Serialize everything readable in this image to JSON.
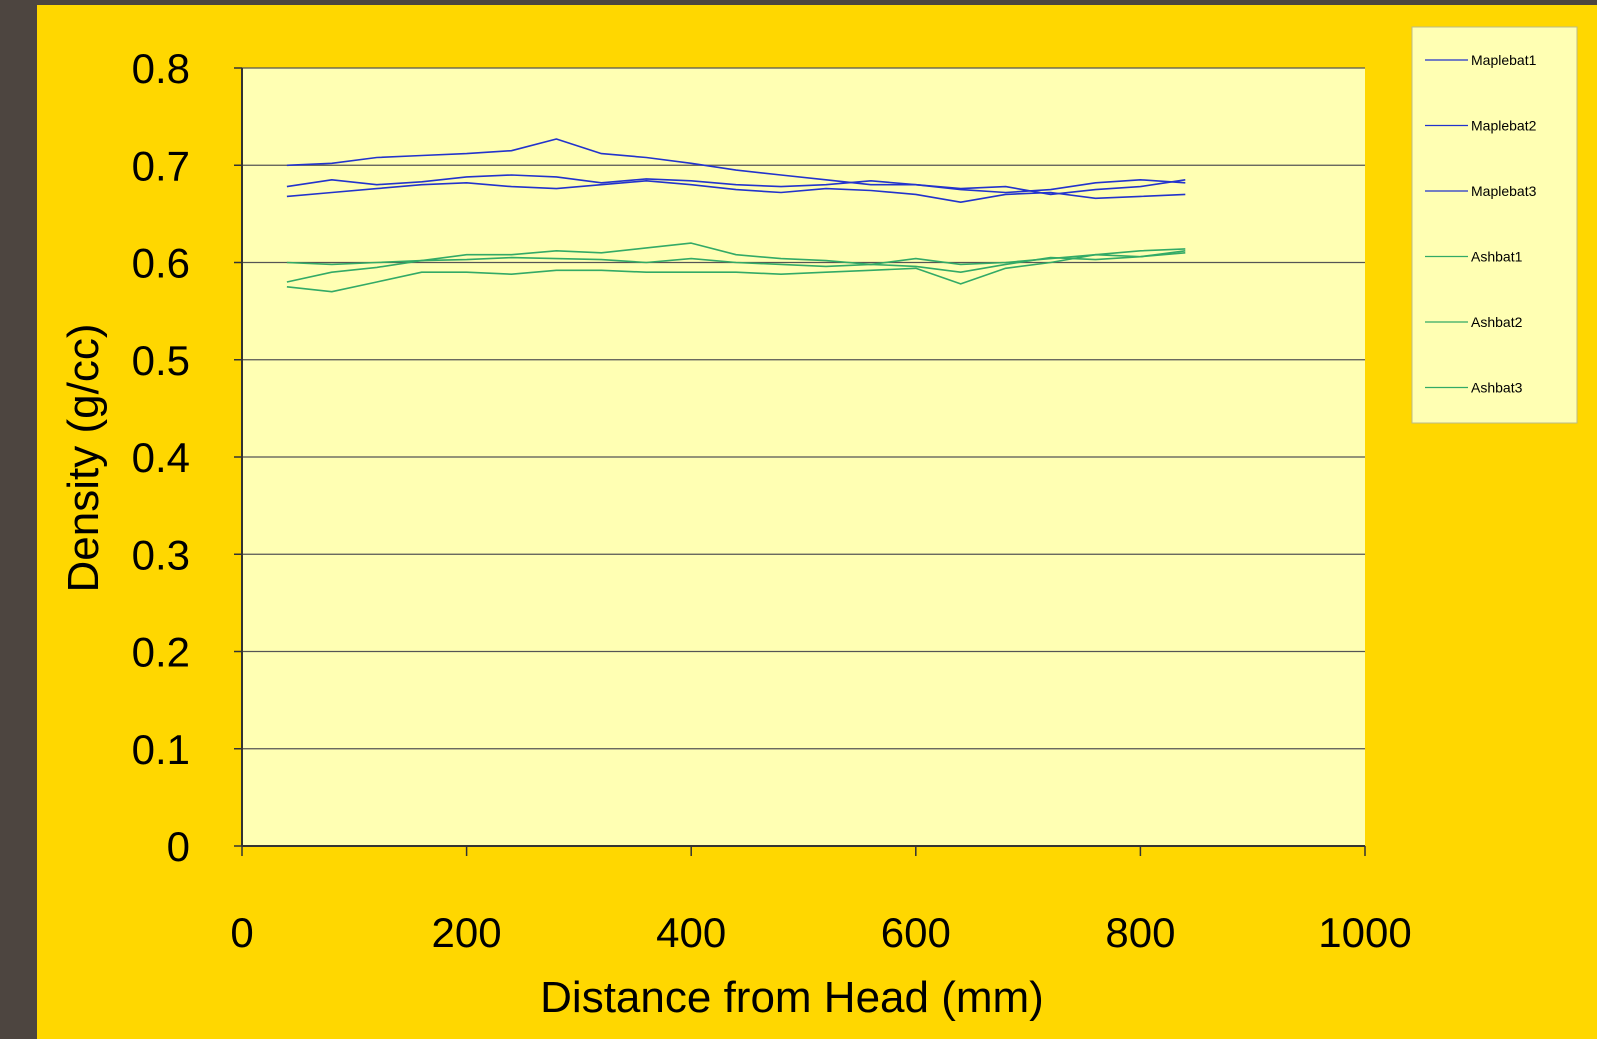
{
  "colors": {
    "frame": "#4d4540",
    "background": "#ffd700",
    "plot_area": "#ffffb3",
    "gridline": "#555555",
    "axis": "#333333",
    "maple": "#2233cc",
    "ash": "#33aa66"
  },
  "chart_data": {
    "type": "line",
    "xlabel": "Distance from Head (mm)",
    "ylabel": "Density (g/cc)",
    "xlim": [
      0,
      1000
    ],
    "ylim": [
      0,
      0.8
    ],
    "x_ticks": [
      "0",
      "200",
      "400",
      "600",
      "800",
      "1000"
    ],
    "y_ticks": [
      "0",
      "0.1",
      "0.2",
      "0.3",
      "0.4",
      "0.5",
      "0.6",
      "0.7",
      "0.8"
    ],
    "grid": true,
    "legend_position": "top-right",
    "x": [
      40,
      80,
      120,
      160,
      200,
      240,
      280,
      320,
      360,
      400,
      440,
      480,
      520,
      560,
      600,
      640,
      680,
      720,
      760,
      800,
      840
    ],
    "series": [
      {
        "name": "Maplebat1",
        "values": [
          0.7,
          0.702,
          0.708,
          0.71,
          0.712,
          0.715,
          0.727,
          0.712,
          0.708,
          0.702,
          0.695,
          0.69,
          0.685,
          0.68,
          0.68,
          0.675,
          0.672,
          0.675,
          0.682,
          0.685,
          0.682
        ]
      },
      {
        "name": "Maplebat2",
        "values": [
          0.668,
          0.672,
          0.676,
          0.68,
          0.682,
          0.678,
          0.676,
          0.68,
          0.684,
          0.68,
          0.675,
          0.672,
          0.676,
          0.674,
          0.67,
          0.662,
          0.67,
          0.672,
          0.666,
          0.668,
          0.67
        ]
      },
      {
        "name": "Maplebat3",
        "values": [
          0.678,
          0.685,
          0.68,
          0.683,
          0.688,
          0.69,
          0.688,
          0.682,
          0.686,
          0.684,
          0.68,
          0.678,
          0.68,
          0.684,
          0.68,
          0.676,
          0.678,
          0.67,
          0.675,
          0.678,
          0.685
        ]
      },
      {
        "name": "Ashbat1",
        "values": [
          0.6,
          0.598,
          0.6,
          0.602,
          0.603,
          0.605,
          0.604,
          0.603,
          0.6,
          0.604,
          0.6,
          0.598,
          0.596,
          0.598,
          0.596,
          0.59,
          0.598,
          0.605,
          0.603,
          0.606,
          0.612
        ]
      },
      {
        "name": "Ashbat2",
        "values": [
          0.58,
          0.59,
          0.595,
          0.602,
          0.608,
          0.608,
          0.612,
          0.61,
          0.615,
          0.62,
          0.608,
          0.604,
          0.602,
          0.598,
          0.604,
          0.598,
          0.6,
          0.604,
          0.608,
          0.606,
          0.61
        ]
      },
      {
        "name": "Ashbat3",
        "values": [
          0.575,
          0.57,
          0.58,
          0.59,
          0.59,
          0.588,
          0.592,
          0.592,
          0.59,
          0.59,
          0.59,
          0.588,
          0.59,
          0.592,
          0.594,
          0.578,
          0.594,
          0.6,
          0.608,
          0.612,
          0.614
        ]
      }
    ]
  }
}
